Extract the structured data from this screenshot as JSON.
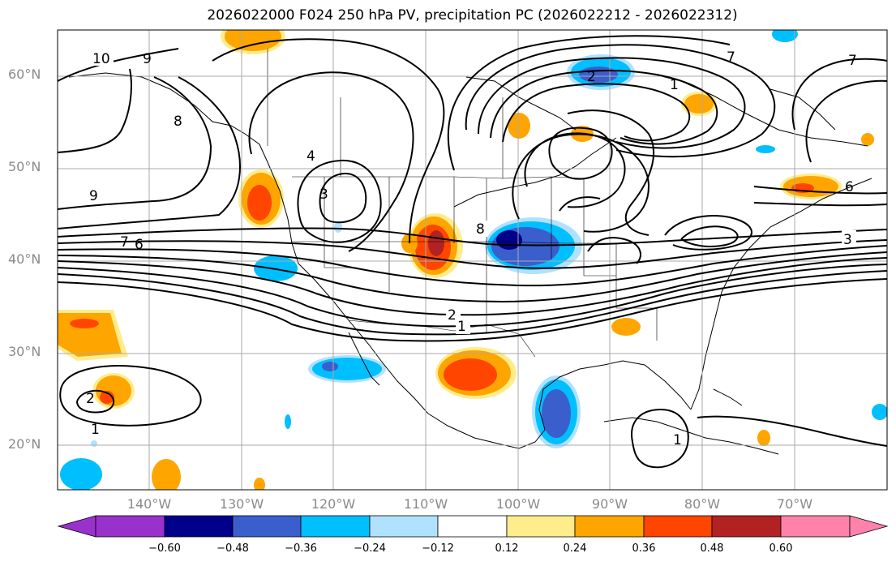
{
  "title": "2026022000 F024 250 hPa PV, precipitation PC (2026022212 - 2026022312)",
  "lat_labels": [
    "60°N",
    "50°N",
    "40°N",
    "30°N",
    "20°N"
  ],
  "lon_labels": [
    "140°W",
    "130°W",
    "120°W",
    "110°W",
    "100°W",
    "90°W",
    "80°W",
    "70°W"
  ],
  "contour_labels": [
    "10",
    "9",
    "8",
    "9",
    "7",
    "6",
    "3",
    "4",
    "8",
    "2",
    "1",
    "2",
    "1",
    "7",
    "2",
    "1",
    "3",
    "6",
    "1",
    "7"
  ],
  "colorbar": {
    "colors": [
      "#9932cc",
      "#00008b",
      "#3a5fcd",
      "#00bfff",
      "#b0e2ff",
      "#ffffff",
      "#ffec8b",
      "#ffa500",
      "#ff4500",
      "#b22222",
      "#ff82ab"
    ],
    "ticks": [
      "−0.60",
      "−0.48",
      "−0.36",
      "−0.24",
      "−0.12",
      "0.12",
      "0.24",
      "0.36",
      "0.48",
      "0.60"
    ]
  }
}
